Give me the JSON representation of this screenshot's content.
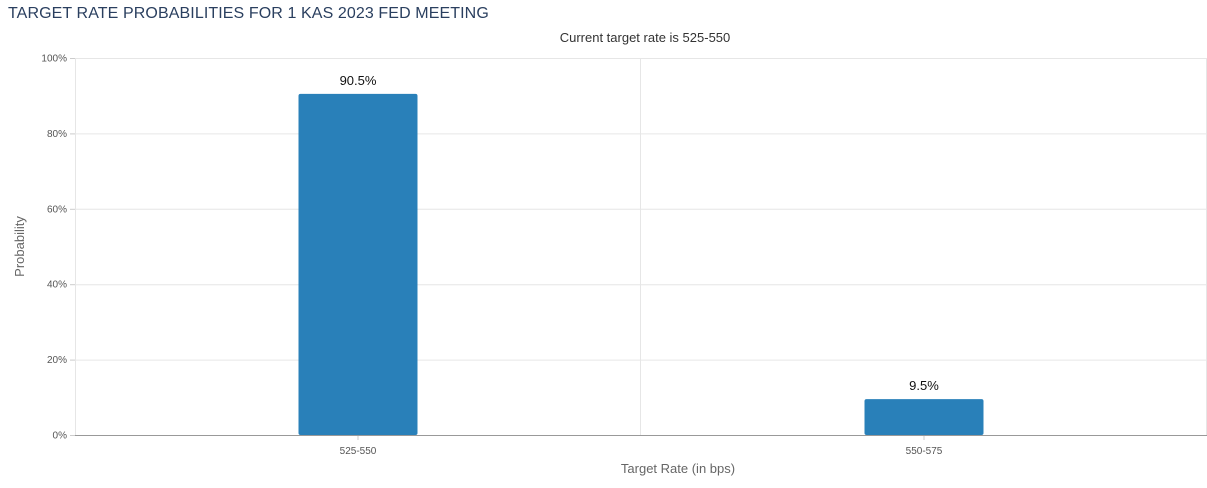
{
  "header": {
    "title": "TARGET RATE PROBABILITIES FOR 1 KAS 2023 FED MEETING"
  },
  "chart_data": {
    "type": "bar",
    "title": "TARGET RATE PROBABILITIES FOR 1 KAS 2023 FED MEETING",
    "subtitle": "Current target rate is 525-550",
    "categories": [
      "525-550",
      "550-575"
    ],
    "values": [
      90.5,
      9.5
    ],
    "data_labels": [
      "90.5%",
      "9.5%"
    ],
    "xlabel": "Target Rate (in bps)",
    "ylabel": "Probability",
    "ylim": [
      0,
      100
    ],
    "y_ticks": [
      "0%",
      "20%",
      "40%",
      "60%",
      "80%",
      "100%"
    ],
    "grid": true,
    "legend": "none",
    "bar_color": "#2980b9"
  }
}
